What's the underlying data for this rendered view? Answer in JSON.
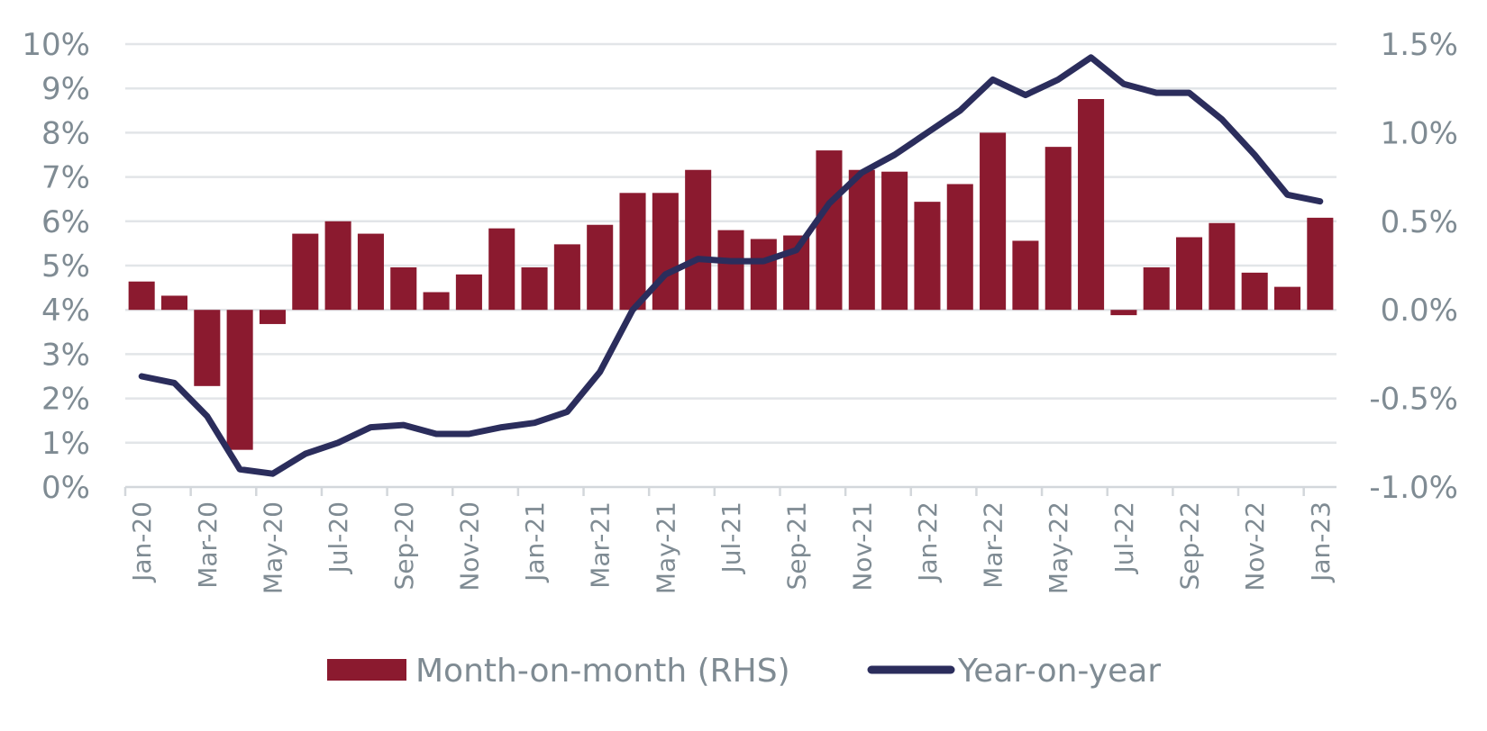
{
  "chart_data": {
    "type": "bar+line",
    "categories": [
      "Jan-20",
      "Feb-20",
      "Mar-20",
      "Apr-20",
      "May-20",
      "Jun-20",
      "Jul-20",
      "Aug-20",
      "Sep-20",
      "Oct-20",
      "Nov-20",
      "Dec-20",
      "Jan-21",
      "Feb-21",
      "Mar-21",
      "Apr-21",
      "May-21",
      "Jun-21",
      "Jul-21",
      "Aug-21",
      "Sep-21",
      "Oct-21",
      "Nov-21",
      "Dec-21",
      "Jan-22",
      "Feb-22",
      "Mar-22",
      "Apr-22",
      "May-22",
      "Jun-22",
      "Jul-22",
      "Aug-22",
      "Sep-22",
      "Oct-22",
      "Nov-22",
      "Dec-22",
      "Jan-23"
    ],
    "x_tick_labels": [
      "Jan-20",
      "Mar-20",
      "May-20",
      "Jul-20",
      "Sep-20",
      "Nov-20",
      "Jan-21",
      "Mar-21",
      "May-21",
      "Jul-21",
      "Sep-21",
      "Nov-21",
      "Jan-22",
      "Mar-22",
      "May-22",
      "Jul-22",
      "Sep-22",
      "Nov-22",
      "Jan-23"
    ],
    "series": [
      {
        "name": "Month-on-month (RHS)",
        "kind": "bar",
        "axis": "right",
        "color": "#8b1a2f",
        "values": [
          0.16,
          0.08,
          -0.43,
          -0.79,
          -0.08,
          0.43,
          0.5,
          0.43,
          0.24,
          0.1,
          0.2,
          0.46,
          0.24,
          0.37,
          0.48,
          0.66,
          0.66,
          0.79,
          0.45,
          0.4,
          0.42,
          0.9,
          0.79,
          0.78,
          0.61,
          0.71,
          1.0,
          0.39,
          0.92,
          1.19,
          -0.03,
          0.24,
          0.41,
          0.49,
          0.21,
          0.13,
          0.52
        ]
      },
      {
        "name": "Year-on-year",
        "kind": "line",
        "axis": "left",
        "color": "#2b2d5c",
        "values": [
          2.5,
          2.35,
          1.6,
          0.4,
          0.3,
          0.75,
          1.0,
          1.35,
          1.4,
          1.2,
          1.2,
          1.35,
          1.45,
          1.7,
          2.6,
          4.0,
          4.8,
          5.15,
          5.1,
          5.1,
          5.35,
          6.4,
          7.1,
          7.5,
          8.0,
          8.5,
          9.2,
          8.85,
          9.2,
          9.7,
          9.1,
          8.9,
          8.9,
          8.3,
          7.5,
          6.6,
          6.45
        ]
      }
    ],
    "y_left": {
      "ylim": [
        0,
        10
      ],
      "ticks": [
        0,
        1,
        2,
        3,
        4,
        5,
        6,
        7,
        8,
        9,
        10
      ],
      "tick_labels": [
        "0%",
        "1%",
        "2%",
        "3%",
        "4%",
        "5%",
        "6%",
        "7%",
        "8%",
        "9%",
        "10%"
      ]
    },
    "y_right": {
      "ylim": [
        -1.0,
        1.5
      ],
      "ticks": [
        -1.0,
        -0.5,
        0.0,
        0.5,
        1.0,
        1.5
      ],
      "tick_labels": [
        "-1.0%",
        "-0.5%",
        "0.0%",
        "0.5%",
        "1.0%",
        "1.5%"
      ]
    },
    "grid": true,
    "legend": {
      "placement": "bottom-center",
      "entries": [
        "Month-on-month (RHS)",
        "Year-on-year"
      ]
    },
    "title": "",
    "xlabel": "",
    "ylabel": ""
  },
  "colors": {
    "bar": "#8b1a2f",
    "line": "#2b2d5c",
    "grid": "#e2e5e8",
    "text": "#7f8b93"
  }
}
